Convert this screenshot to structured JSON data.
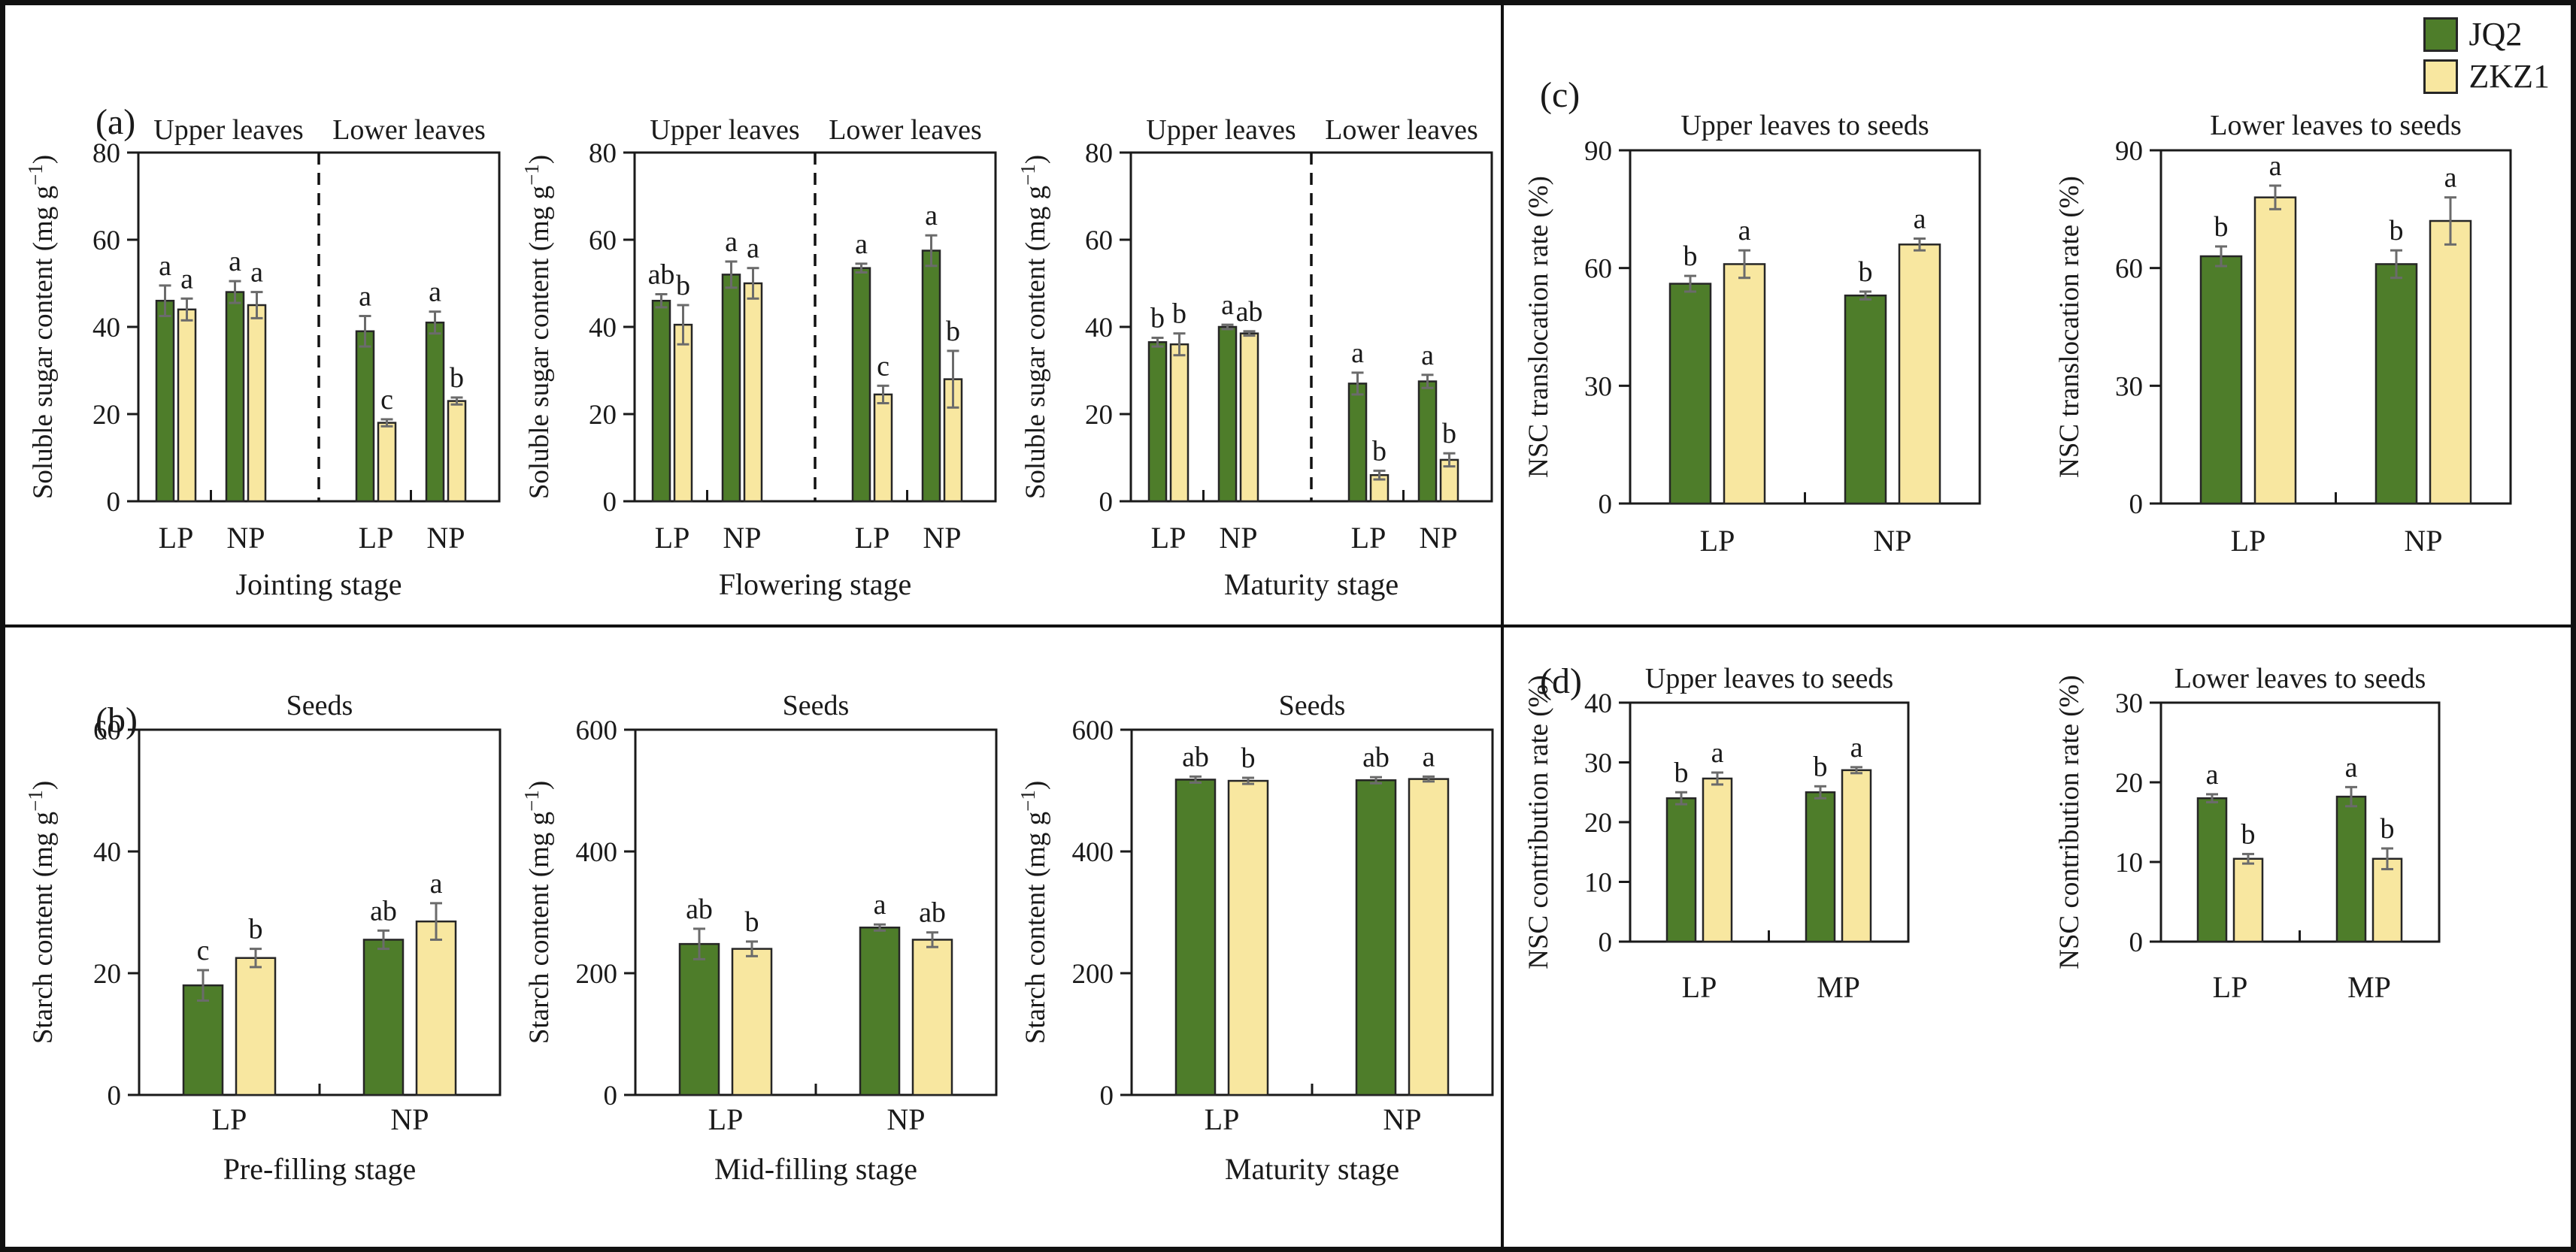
{
  "legend": {
    "items": [
      {
        "label": "JQ2",
        "color": "#4e7d2a"
      },
      {
        "label": "ZKZ1",
        "color": "#f8e7a0"
      }
    ]
  },
  "panels": {
    "a": {
      "label": "(a)"
    },
    "b": {
      "label": "(b)"
    },
    "c": {
      "label": "(c)"
    },
    "d": {
      "label": "(d)"
    }
  },
  "style_colors": {
    "bar_outline": "#262626",
    "error_bar": "#6b6b6b",
    "axis": "#1a1a1a"
  },
  "chart_data": [
    {
      "id": "a-jointing",
      "panel": "a",
      "type": "bar",
      "titles": [
        "Upper leaves",
        "Lower leaves"
      ],
      "split": true,
      "xlabel": "Jointing stage",
      "ylabel": "Soluble sugar content (mg g⁻¹)",
      "ylim": [
        0,
        80
      ],
      "yticks": [
        0,
        20,
        40,
        60,
        80
      ],
      "categories": [
        "LP",
        "NP",
        "LP",
        "NP"
      ],
      "series": [
        {
          "name": "JQ2",
          "values": [
            46,
            48,
            39,
            41
          ],
          "errors": [
            3.5,
            2.5,
            3.5,
            2.5
          ],
          "letters": [
            "a",
            "a",
            "a",
            "a"
          ]
        },
        {
          "name": "ZKZ1",
          "values": [
            44,
            45,
            18,
            23
          ],
          "errors": [
            2.5,
            3,
            0.8,
            0.8
          ],
          "letters": [
            "a",
            "a",
            "c",
            "b"
          ]
        }
      ]
    },
    {
      "id": "a-flowering",
      "panel": "a",
      "type": "bar",
      "titles": [
        "Upper leaves",
        "Lower leaves"
      ],
      "split": true,
      "xlabel": "Flowering stage",
      "ylabel": "Soluble sugar content (mg g⁻¹)",
      "ylim": [
        0,
        80
      ],
      "yticks": [
        0,
        20,
        40,
        60,
        80
      ],
      "categories": [
        "LP",
        "NP",
        "LP",
        "NP"
      ],
      "series": [
        {
          "name": "JQ2",
          "values": [
            46,
            52,
            53.5,
            57.5
          ],
          "errors": [
            1.5,
            3,
            1,
            3.5
          ],
          "letters": [
            "ab",
            "a",
            "a",
            "a"
          ]
        },
        {
          "name": "ZKZ1",
          "values": [
            40.5,
            50,
            24.5,
            28
          ],
          "errors": [
            4.5,
            3.5,
            2,
            6.5
          ],
          "letters": [
            "b",
            "a",
            "c",
            "b"
          ]
        }
      ]
    },
    {
      "id": "a-maturity",
      "panel": "a",
      "type": "bar",
      "titles": [
        "Upper leaves",
        "Lower leaves"
      ],
      "split": true,
      "xlabel": "Maturity stage",
      "ylabel": "Soluble sugar content (mg g⁻¹)",
      "ylim": [
        0,
        80
      ],
      "yticks": [
        0,
        20,
        40,
        60,
        80
      ],
      "categories": [
        "LP",
        "NP",
        "LP",
        "NP"
      ],
      "series": [
        {
          "name": "JQ2",
          "values": [
            36.5,
            40,
            27,
            27.5
          ],
          "errors": [
            1,
            0.5,
            2.5,
            1.5
          ],
          "letters": [
            "b",
            "a",
            "a",
            "a"
          ]
        },
        {
          "name": "ZKZ1",
          "values": [
            36,
            38.5,
            6,
            9.5
          ],
          "errors": [
            2.5,
            0.5,
            1,
            1.5
          ],
          "letters": [
            "b",
            "ab",
            "b",
            "b"
          ]
        }
      ]
    },
    {
      "id": "b-prefilling",
      "panel": "b",
      "type": "bar",
      "title": "Seeds",
      "xlabel": "Pre-filling stage",
      "ylabel": "Starch content (mg g⁻¹)",
      "ylim": [
        0,
        60
      ],
      "yticks": [
        0,
        20,
        40,
        60
      ],
      "categories": [
        "LP",
        "NP"
      ],
      "series": [
        {
          "name": "JQ2",
          "values": [
            18,
            25.5
          ],
          "errors": [
            2.5,
            1.5
          ],
          "letters": [
            "c",
            "ab"
          ]
        },
        {
          "name": "ZKZ1",
          "values": [
            22.5,
            28.5
          ],
          "errors": [
            1.5,
            3
          ],
          "letters": [
            "b",
            "a"
          ]
        }
      ]
    },
    {
      "id": "b-midfilling",
      "panel": "b",
      "type": "bar",
      "title": "Seeds",
      "xlabel": "Mid-filling stage",
      "ylabel": "Starch content (mg g⁻¹)",
      "ylim": [
        0,
        600
      ],
      "yticks": [
        0,
        200,
        400,
        600
      ],
      "categories": [
        "LP",
        "NP"
      ],
      "series": [
        {
          "name": "JQ2",
          "values": [
            248,
            275
          ],
          "errors": [
            25,
            5
          ],
          "letters": [
            "ab",
            "a"
          ]
        },
        {
          "name": "ZKZ1",
          "values": [
            240,
            255
          ],
          "errors": [
            12,
            12
          ],
          "letters": [
            "b",
            "ab"
          ]
        }
      ]
    },
    {
      "id": "b-maturity",
      "panel": "b",
      "type": "bar",
      "title": "Seeds",
      "xlabel": "Maturity stage",
      "ylabel": "Starch content (mg g⁻¹)",
      "ylim": [
        0,
        600
      ],
      "yticks": [
        0,
        200,
        400,
        600
      ],
      "categories": [
        "LP",
        "NP"
      ],
      "series": [
        {
          "name": "JQ2",
          "values": [
            518,
            517
          ],
          "errors": [
            5,
            5
          ],
          "letters": [
            "ab",
            "ab"
          ]
        },
        {
          "name": "ZKZ1",
          "values": [
            516,
            519
          ],
          "errors": [
            5,
            4
          ],
          "letters": [
            "b",
            "a"
          ]
        }
      ]
    },
    {
      "id": "c-upper",
      "panel": "c",
      "type": "bar",
      "title": "Upper leaves to seeds",
      "ylabel": "NSC translocation rate (%)",
      "ylim": [
        0,
        90
      ],
      "yticks": [
        0,
        30,
        60,
        90
      ],
      "categories": [
        "LP",
        "NP"
      ],
      "series": [
        {
          "name": "JQ2",
          "values": [
            56,
            53
          ],
          "errors": [
            2,
            1
          ],
          "letters": [
            "b",
            "b"
          ]
        },
        {
          "name": "ZKZ1",
          "values": [
            61,
            66
          ],
          "errors": [
            3.5,
            1.5
          ],
          "letters": [
            "a",
            "a"
          ]
        }
      ]
    },
    {
      "id": "c-lower",
      "panel": "c",
      "type": "bar",
      "title": "Lower leaves to seeds",
      "ylabel": "NSC translocation rate (%)",
      "ylim": [
        0,
        90
      ],
      "yticks": [
        0,
        30,
        60,
        90
      ],
      "categories": [
        "LP",
        "NP"
      ],
      "series": [
        {
          "name": "JQ2",
          "values": [
            63,
            61
          ],
          "errors": [
            2.5,
            3.5
          ],
          "letters": [
            "b",
            "b"
          ]
        },
        {
          "name": "ZKZ1",
          "values": [
            78,
            72
          ],
          "errors": [
            3,
            6
          ],
          "letters": [
            "a",
            "a"
          ]
        }
      ]
    },
    {
      "id": "d-upper",
      "panel": "d",
      "type": "bar",
      "title": "Upper leaves to seeds",
      "ylabel": "NSC contribution rate (%)",
      "ylim": [
        0,
        40
      ],
      "yticks": [
        0,
        10,
        20,
        30,
        40
      ],
      "categories": [
        "LP",
        "MP"
      ],
      "series": [
        {
          "name": "JQ2",
          "values": [
            24,
            25
          ],
          "errors": [
            1,
            1
          ],
          "letters": [
            "b",
            "b"
          ]
        },
        {
          "name": "ZKZ1",
          "values": [
            27.3,
            28.7
          ],
          "errors": [
            1,
            0.5
          ],
          "letters": [
            "a",
            "a"
          ]
        }
      ]
    },
    {
      "id": "d-lower",
      "panel": "d",
      "type": "bar",
      "title": "Lower leaves to seeds",
      "ylabel": "NSC contribution rate (%)",
      "ylim": [
        0,
        30
      ],
      "yticks": [
        0,
        10,
        20,
        30
      ],
      "categories": [
        "LP",
        "MP"
      ],
      "series": [
        {
          "name": "JQ2",
          "values": [
            18,
            18.2
          ],
          "errors": [
            0.5,
            1.2
          ],
          "letters": [
            "a",
            "a"
          ]
        },
        {
          "name": "ZKZ1",
          "values": [
            10.4,
            10.4
          ],
          "errors": [
            0.6,
            1.3
          ],
          "letters": [
            "b",
            "b"
          ]
        }
      ]
    }
  ]
}
